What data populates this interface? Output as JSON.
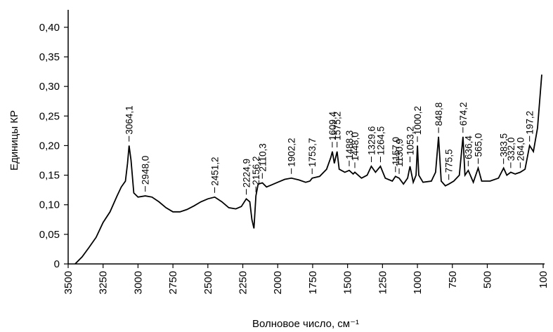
{
  "chart_data": {
    "type": "line",
    "xlabel": "Волновое число, см⁻¹",
    "ylabel": "Единицы КР",
    "color": "#000000",
    "x": [
      3450,
      3400,
      3350,
      3300,
      3250,
      3200,
      3150,
      3120,
      3090,
      3075,
      3064,
      3050,
      3030,
      3000,
      2948,
      2900,
      2850,
      2800,
      2750,
      2700,
      2650,
      2600,
      2550,
      2500,
      2451,
      2400,
      2350,
      2300,
      2260,
      2225,
      2200,
      2185,
      2170,
      2156,
      2140,
      2110,
      2080,
      2050,
      2000,
      1950,
      1902,
      1850,
      1800,
      1770,
      1753,
      1700,
      1650,
      1620,
      1609,
      1595,
      1575,
      1560,
      1520,
      1488,
      1460,
      1448,
      1400,
      1360,
      1330,
      1300,
      1265,
      1230,
      1180,
      1157,
      1131,
      1100,
      1070,
      1053,
      1030,
      1010,
      1000,
      990,
      960,
      900,
      870,
      849,
      830,
      800,
      775,
      740,
      700,
      674,
      660,
      636,
      600,
      565,
      540,
      480,
      420,
      383,
      360,
      332,
      300,
      264,
      230,
      197,
      170,
      140,
      120,
      110
    ],
    "values": [
      0.0,
      0.012,
      0.028,
      0.045,
      0.07,
      0.088,
      0.115,
      0.13,
      0.14,
      0.17,
      0.2,
      0.175,
      0.12,
      0.113,
      0.115,
      0.113,
      0.105,
      0.095,
      0.088,
      0.088,
      0.092,
      0.098,
      0.105,
      0.11,
      0.113,
      0.105,
      0.095,
      0.093,
      0.097,
      0.11,
      0.105,
      0.075,
      0.06,
      0.115,
      0.135,
      0.137,
      0.13,
      0.133,
      0.138,
      0.143,
      0.145,
      0.142,
      0.138,
      0.14,
      0.145,
      0.148,
      0.16,
      0.18,
      0.19,
      0.17,
      0.19,
      0.16,
      0.155,
      0.158,
      0.152,
      0.155,
      0.145,
      0.15,
      0.165,
      0.155,
      0.165,
      0.145,
      0.14,
      0.148,
      0.145,
      0.135,
      0.145,
      0.165,
      0.138,
      0.15,
      0.2,
      0.15,
      0.138,
      0.14,
      0.155,
      0.215,
      0.14,
      0.132,
      0.135,
      0.14,
      0.15,
      0.215,
      0.15,
      0.158,
      0.138,
      0.162,
      0.14,
      0.14,
      0.145,
      0.162,
      0.15,
      0.155,
      0.152,
      0.155,
      0.16,
      0.2,
      0.19,
      0.23,
      0.29,
      0.32
    ],
    "xlim": [
      3500,
      100
    ],
    "xticks": [
      3500,
      3250,
      3000,
      2750,
      2500,
      2250,
      2000,
      1750,
      1500,
      1250,
      1000,
      750,
      500,
      100
    ],
    "ylim": [
      0,
      0.42
    ],
    "yticks": [
      {
        "value": 0,
        "label": "0"
      },
      {
        "value": 0.05,
        "label": "0,05"
      },
      {
        "value": 0.1,
        "label": "0,10"
      },
      {
        "value": 0.15,
        "label": "0,15"
      },
      {
        "value": 0.2,
        "label": "0,20"
      },
      {
        "value": 0.25,
        "label": "0,25"
      },
      {
        "value": 0.3,
        "label": "0,30"
      },
      {
        "value": 0.35,
        "label": "0,35"
      },
      {
        "value": 0.4,
        "label": "0,40"
      }
    ],
    "annotations": [
      {
        "x": 3064.1,
        "label": "3064,1"
      },
      {
        "x": 2948.0,
        "label": "2948,0"
      },
      {
        "x": 2451.2,
        "label": "2451,2"
      },
      {
        "x": 2224.9,
        "label": "2224,9"
      },
      {
        "x": 2156.2,
        "label": "2156,2"
      },
      {
        "x": 2110.3,
        "label": "2110,3"
      },
      {
        "x": 1902.2,
        "label": "1902,2"
      },
      {
        "x": 1753.7,
        "label": "1753,7"
      },
      {
        "x": 1609.4,
        "label": "1609,4"
      },
      {
        "x": 1575.2,
        "label": "1575,2"
      },
      {
        "x": 1488.3,
        "label": "1488,3"
      },
      {
        "x": 1448.0,
        "label": "1448,0"
      },
      {
        "x": 1329.6,
        "label": "1329,6"
      },
      {
        "x": 1264.5,
        "label": "1264,5"
      },
      {
        "x": 1157.0,
        "label": "1157,0"
      },
      {
        "x": 1130.9,
        "label": "1130,9"
      },
      {
        "x": 1053.2,
        "label": "1053,2"
      },
      {
        "x": 1000.2,
        "label": "1000,2"
      },
      {
        "x": 848.8,
        "label": "848,8"
      },
      {
        "x": 775.5,
        "label": "775,5"
      },
      {
        "x": 674.2,
        "label": "674,2"
      },
      {
        "x": 636.4,
        "label": "636,4"
      },
      {
        "x": 565.0,
        "label": "565,0"
      },
      {
        "x": 383.5,
        "label": "383,5"
      },
      {
        "x": 332.0,
        "label": "332,0"
      },
      {
        "x": 264.0,
        "label": "264,0"
      },
      {
        "x": 197.2,
        "label": "197,2"
      }
    ]
  }
}
